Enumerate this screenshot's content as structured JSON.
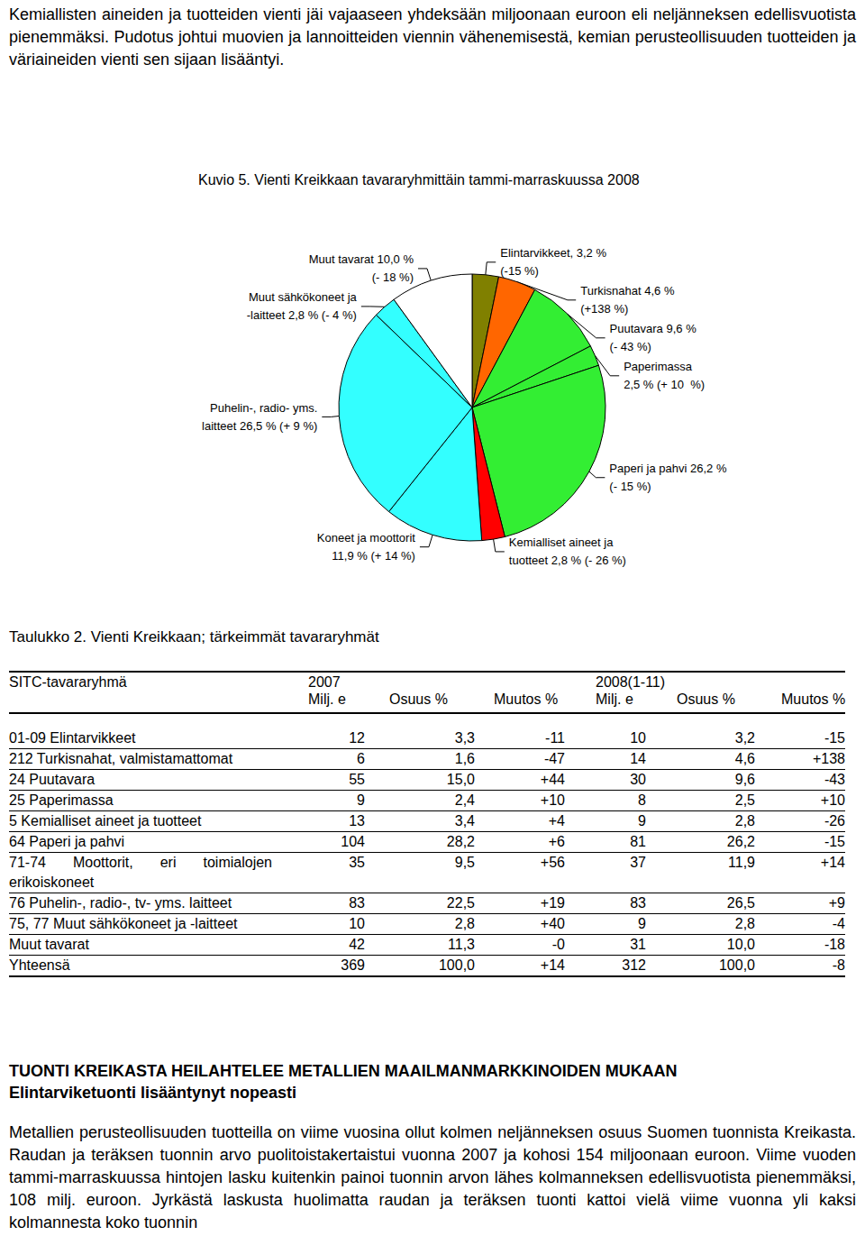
{
  "intro": "Kemiallisten aineiden ja tuotteiden vienti jäi vajaaseen yhdeksään miljoonaan euroon eli neljänneksen edellisvuotista pienemmäksi. Pudotus johtui muovien ja lannoitteiden viennin vähenemisestä, kemian perusteollisuuden tuotteiden ja väriaineiden vienti sen sijaan lisääntyi.",
  "chart_data": {
    "type": "pie",
    "title": "Kuvio 5. Vienti Kreikkaan tavararyhmittäin tammi-marraskuussa 2008",
    "values": [
      3.2,
      4.6,
      9.6,
      2.5,
      26.2,
      2.8,
      11.9,
      26.5,
      2.8,
      10.0
    ],
    "value_labels": [
      "Elintarvikkeet, 3,2 %\n(-15 %)",
      "Turkisnahat 4,6 %\n(+138 %)",
      "Puutavara 9,6 %\n(- 43 %)",
      "Paperimassa\n2,5 % (+ 10  %)",
      "Paperi ja pahvi 26,2 %\n(- 15 %)",
      "Kemialliset aineet ja\ntuotteet 2,8 % (- 26 %)",
      "Koneet ja moottorit\n11,9 % (+ 14 %)",
      "Puhelin-, radio- yms.\nlaitteet 26,5 % (+ 9 %)",
      "Muut sähkökoneet ja\n-laitteet 2,8 % (- 4 %)",
      "Muut tavarat 10,0 %\n(- 18 %)"
    ],
    "colors": [
      "#808000",
      "#ff6600",
      "#33ee33",
      "#33ee33",
      "#33ee33",
      "#ff0000",
      "#33ffff",
      "#33ffff",
      "#33ffff",
      "#ffffff"
    ]
  },
  "table": {
    "title": "Taulukko 2. Vienti Kreikkaan; tärkeimmät tavararyhmät",
    "header": {
      "group": "SITC-tavararyhmä",
      "periods": [
        "2007",
        "2008(1-11)"
      ],
      "columns": [
        "Milj. e",
        "Osuus %",
        "Muutos %"
      ]
    },
    "rows": [
      [
        "01-09 Elintarvikkeet",
        "12",
        "3,3",
        "-11",
        "10",
        "3,2",
        "-15"
      ],
      [
        "212 Turkisnahat, valmistamattomat",
        "6",
        "1,6",
        "-47",
        "14",
        "4,6",
        "+138"
      ],
      [
        "24 Puutavara",
        "55",
        "15,0",
        "+44",
        "30",
        "9,6",
        "-43"
      ],
      [
        "25 Paperimassa",
        "9",
        "2,4",
        "+10",
        "8",
        "2,5",
        "+10"
      ],
      [
        "5 Kemialliset aineet ja tuotteet",
        "13",
        "3,4",
        "+4",
        "9",
        "2,8",
        "-26"
      ],
      [
        "64 Paperi ja pahvi",
        "104",
        "28,2",
        "+6",
        "81",
        "26,2",
        "-15"
      ],
      [
        "71-74 Moottorit, eri toimialojen erikoiskoneet",
        "35",
        "9,5",
        "+56",
        "37",
        "11,9",
        "+14"
      ],
      [
        "76 Puhelin-, radio-, tv- yms. laitteet",
        "83",
        "22,5",
        "+19",
        "83",
        "26,5",
        "+9"
      ],
      [
        "75, 77 Muut sähkökoneet ja -laitteet",
        "10",
        "2,8",
        "+40",
        "9",
        "2,8",
        "-4"
      ],
      [
        "Muut tavarat",
        "42",
        "11,3",
        "-0",
        "31",
        "10,0",
        "-18"
      ],
      [
        "Yhteensä",
        "369",
        "100,0",
        "+14",
        "312",
        "100,0",
        "-8"
      ]
    ]
  },
  "section": {
    "heading": "TUONTI KREIKASTA HEILAHTELEE METALLIEN MAAILMANMARKKINOIDEN MUKAAN",
    "subheading": "Elintarviketuonti lisääntynyt nopeasti",
    "paragraph": "Metallien perusteollisuuden tuotteilla on viime vuosina ollut kolmen neljänneksen osuus Suomen tuonnista Kreikasta. Raudan ja teräksen tuonnin arvo puolitoistakertaistui vuonna 2007 ja kohosi 154 miljoonaan euroon. Viime vuoden tammi-marraskuussa hintojen lasku kuitenkin painoi tuonnin arvon lähes kolmanneksen edellisvuotista pienemmäksi, 108 milj. euroon. Jyrkästä laskusta huolimatta raudan ja teräksen tuonti kattoi vielä viime vuonna yli kaksi kolmannesta koko tuonnin"
  }
}
